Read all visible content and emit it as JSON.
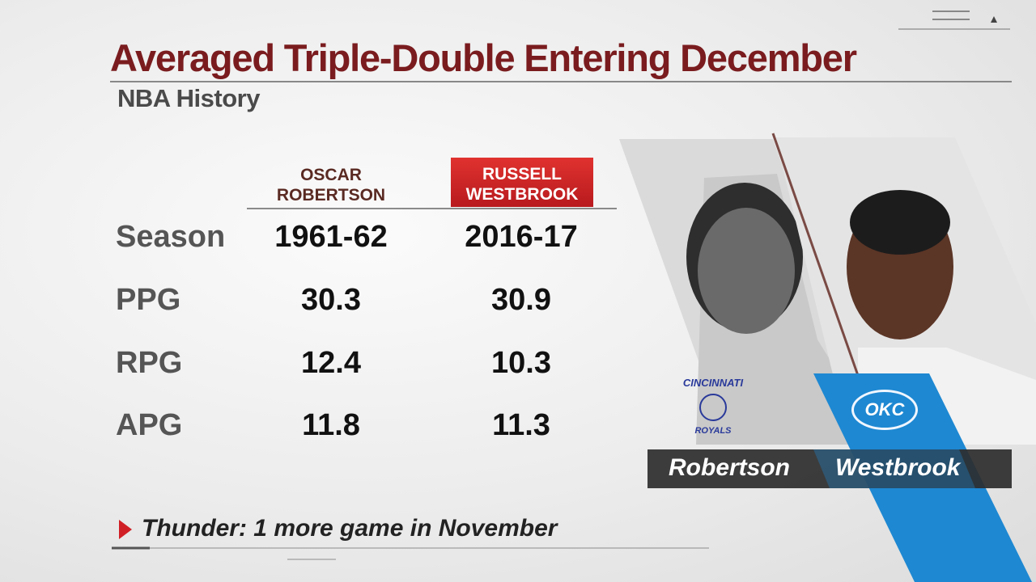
{
  "header": {
    "title": "Averaged Triple-Double Entering December",
    "subtitle": "NBA History"
  },
  "table": {
    "columns": [
      [
        "OSCAR",
        "ROBERTSON"
      ],
      [
        "RUSSELL",
        "WESTBROOK"
      ]
    ],
    "rows": [
      [
        "Season",
        "1961-62",
        "2016-17"
      ],
      [
        "PPG",
        "30.3",
        "30.9"
      ],
      [
        "RPG",
        "12.4",
        "10.3"
      ],
      [
        "APG",
        "11.8",
        "11.3"
      ]
    ]
  },
  "players": [
    "Robertson",
    "Westbrook"
  ],
  "logos": {
    "left": [
      "CINCINNATI",
      "ROYALS"
    ],
    "right": "OKC"
  },
  "footnote": "Thunder: 1 more game in November"
}
